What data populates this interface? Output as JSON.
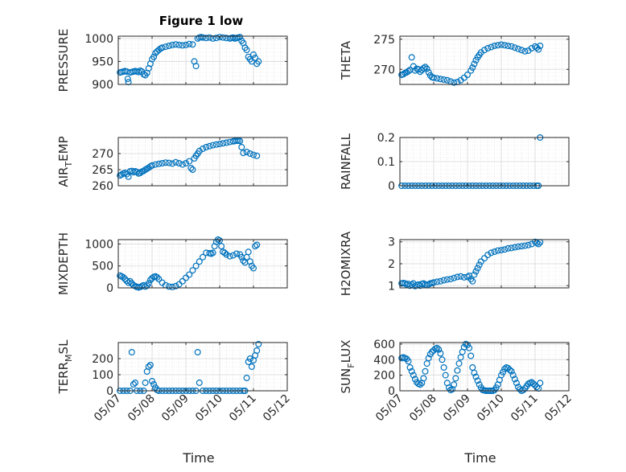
{
  "figure": {
    "title": "Figure 1 low",
    "xlabel": "Time",
    "x_tick_labels": [
      "05/07",
      "05/08",
      "05/09",
      "05/10",
      "05/11",
      "05/12"
    ],
    "marker_color": "#0072BD",
    "grid_color": "#d9d9d9",
    "axes_color": "#262626"
  },
  "chart_data": [
    {
      "type": "scatter",
      "ylabel": "PRESSURE",
      "xlim": [
        7.0,
        12.0
      ],
      "ylim": [
        900,
        1005
      ],
      "yticks": [
        900,
        950,
        1000
      ],
      "ytick_labels": [
        "900",
        "950",
        "1000"
      ],
      "x": [
        7.05,
        7.1,
        7.15,
        7.2,
        7.25,
        7.28,
        7.3,
        7.35,
        7.4,
        7.45,
        7.5,
        7.55,
        7.6,
        7.65,
        7.7,
        7.75,
        7.8,
        7.85,
        7.9,
        7.95,
        8.0,
        8.05,
        8.1,
        8.15,
        8.2,
        8.25,
        8.3,
        8.4,
        8.5,
        8.6,
        8.7,
        8.8,
        8.9,
        9.0,
        9.1,
        9.2,
        9.25,
        9.3,
        9.35,
        9.4,
        9.45,
        9.5,
        9.6,
        9.7,
        9.8,
        9.9,
        10.0,
        10.1,
        10.2,
        10.3,
        10.35,
        10.4,
        10.45,
        10.5,
        10.55,
        10.6,
        10.65,
        10.7,
        10.75,
        10.8,
        10.85,
        10.9,
        10.95,
        11.0,
        11.05,
        11.1,
        11.15
      ],
      "y": [
        926,
        927,
        928,
        929,
        928,
        912,
        905,
        926,
        927,
        928,
        929,
        928,
        927,
        930,
        928,
        922,
        920,
        925,
        935,
        945,
        955,
        960,
        968,
        972,
        975,
        978,
        980,
        982,
        984,
        986,
        987,
        986,
        985,
        986,
        988,
        987,
        950,
        940,
        1000,
        1002,
        1003,
        1002,
        1001,
        1002,
        1000,
        1001,
        1003,
        1002,
        1001,
        1000,
        1001,
        1002,
        1000,
        1001,
        1002,
        1003,
        995,
        990,
        980,
        975,
        960,
        955,
        950,
        965,
        958,
        945,
        950
      ]
    },
    {
      "type": "scatter",
      "ylabel": "THETA",
      "xlim": [
        7.0,
        12.0
      ],
      "ylim": [
        267.5,
        275.5
      ],
      "yticks": [
        270,
        275
      ],
      "ytick_labels": [
        "270",
        "275"
      ],
      "x": [
        7.05,
        7.1,
        7.15,
        7.2,
        7.25,
        7.3,
        7.35,
        7.4,
        7.45,
        7.5,
        7.55,
        7.6,
        7.65,
        7.7,
        7.75,
        7.8,
        7.85,
        7.9,
        7.95,
        8.0,
        8.1,
        8.2,
        8.3,
        8.4,
        8.5,
        8.6,
        8.7,
        8.8,
        8.9,
        9.0,
        9.1,
        9.15,
        9.2,
        9.25,
        9.3,
        9.35,
        9.4,
        9.5,
        9.6,
        9.7,
        9.8,
        9.9,
        10.0,
        10.1,
        10.2,
        10.3,
        10.4,
        10.5,
        10.6,
        10.7,
        10.8,
        10.9,
        11.0,
        11.05,
        11.1,
        11.15
      ],
      "y": [
        269.1,
        269.2,
        269.4,
        269.5,
        269.7,
        269.9,
        272.0,
        270.5,
        269.8,
        270.1,
        270.0,
        269.6,
        269.9,
        270.2,
        270.4,
        270.1,
        269.5,
        269.0,
        268.7,
        268.6,
        268.5,
        268.4,
        268.3,
        268.2,
        268.0,
        267.8,
        267.9,
        268.2,
        268.6,
        269.1,
        269.8,
        270.3,
        270.9,
        271.5,
        272.0,
        272.4,
        272.8,
        273.2,
        273.5,
        273.7,
        273.9,
        274.0,
        274.1,
        274.0,
        273.9,
        273.8,
        273.6,
        273.4,
        273.2,
        273.0,
        273.1,
        273.5,
        273.8,
        273.6,
        273.3,
        273.9
      ]
    },
    {
      "type": "scatter",
      "ylabel": "AIR",
      "ylabel_sub": "T",
      "ylabel_suffix": "EMP",
      "xlim": [
        7.0,
        12.0
      ],
      "ylim": [
        260,
        275
      ],
      "yticks": [
        260,
        265,
        270
      ],
      "ytick_labels": [
        "260",
        "265",
        "270"
      ],
      "x": [
        7.05,
        7.1,
        7.15,
        7.2,
        7.25,
        7.3,
        7.35,
        7.4,
        7.45,
        7.5,
        7.55,
        7.6,
        7.65,
        7.7,
        7.75,
        7.8,
        7.85,
        7.9,
        7.95,
        8.0,
        8.1,
        8.2,
        8.3,
        8.4,
        8.5,
        8.6,
        8.7,
        8.8,
        8.9,
        9.0,
        9.1,
        9.15,
        9.2,
        9.25,
        9.3,
        9.35,
        9.4,
        9.5,
        9.6,
        9.7,
        9.8,
        9.9,
        10.0,
        10.1,
        10.2,
        10.3,
        10.4,
        10.45,
        10.5,
        10.55,
        10.6,
        10.65,
        10.7,
        10.8,
        10.9,
        11.0,
        11.1
      ],
      "y": [
        263.2,
        263.5,
        263.8,
        264.0,
        263.6,
        262.8,
        264.5,
        264.6,
        264.2,
        264.5,
        264.3,
        263.8,
        264.0,
        264.4,
        264.6,
        265.0,
        265.3,
        265.6,
        266.0,
        266.3,
        266.6,
        266.8,
        267.0,
        267.2,
        267.1,
        266.9,
        267.3,
        267.0,
        266.6,
        267.0,
        267.6,
        265.5,
        265.0,
        268.5,
        269.3,
        270.0,
        270.8,
        271.5,
        272.0,
        272.3,
        272.6,
        272.8,
        273.0,
        273.2,
        273.4,
        273.6,
        273.8,
        273.9,
        274.0,
        274.0,
        273.9,
        272.0,
        270.2,
        270.5,
        270.0,
        269.6,
        269.3
      ]
    },
    {
      "type": "scatter",
      "ylabel": "RAINFALL",
      "xlim": [
        7.0,
        12.0
      ],
      "ylim": [
        0,
        0.2
      ],
      "yticks": [
        0,
        0.1,
        0.2
      ],
      "ytick_labels": [
        "0",
        "0.1",
        "0.2"
      ],
      "x": [
        7.05,
        7.15,
        7.25,
        7.35,
        7.45,
        7.55,
        7.65,
        7.75,
        7.85,
        7.95,
        8.05,
        8.15,
        8.25,
        8.35,
        8.45,
        8.55,
        8.65,
        8.75,
        8.85,
        8.95,
        9.05,
        9.15,
        9.25,
        9.35,
        9.45,
        9.55,
        9.65,
        9.75,
        9.85,
        9.95,
        10.05,
        10.15,
        10.25,
        10.35,
        10.45,
        10.55,
        10.65,
        10.75,
        10.85,
        10.95,
        11.05,
        11.1,
        11.15
      ],
      "y": [
        0,
        0,
        0,
        0,
        0,
        0,
        0,
        0,
        0,
        0,
        0,
        0,
        0,
        0,
        0,
        0,
        0,
        0,
        0,
        0,
        0,
        0,
        0,
        0,
        0,
        0,
        0,
        0,
        0,
        0,
        0,
        0,
        0,
        0,
        0,
        0,
        0,
        0,
        0,
        0,
        0,
        0,
        0.2
      ]
    },
    {
      "type": "scatter",
      "ylabel": "MIXDEPTH",
      "xlim": [
        7.0,
        12.0
      ],
      "ylim": [
        0,
        1100
      ],
      "yticks": [
        0,
        500,
        1000
      ],
      "ytick_labels": [
        "0",
        "500",
        "1000"
      ],
      "x": [
        7.05,
        7.1,
        7.15,
        7.2,
        7.25,
        7.3,
        7.35,
        7.4,
        7.45,
        7.5,
        7.55,
        7.6,
        7.65,
        7.7,
        7.75,
        7.8,
        7.85,
        7.9,
        7.95,
        8.0,
        8.05,
        8.1,
        8.15,
        8.2,
        8.3,
        8.4,
        8.5,
        8.6,
        8.7,
        8.8,
        8.9,
        9.0,
        9.1,
        9.2,
        9.3,
        9.4,
        9.5,
        9.6,
        9.7,
        9.75,
        9.8,
        9.85,
        9.9,
        9.95,
        10.0,
        10.05,
        10.1,
        10.15,
        10.2,
        10.3,
        10.4,
        10.5,
        10.6,
        10.65,
        10.7,
        10.75,
        10.8,
        10.85,
        10.9,
        10.95,
        11.0,
        11.05,
        11.1
      ],
      "y": [
        280,
        260,
        240,
        200,
        160,
        120,
        150,
        100,
        60,
        40,
        20,
        10,
        20,
        40,
        60,
        30,
        50,
        100,
        180,
        220,
        250,
        260,
        240,
        200,
        120,
        60,
        30,
        20,
        40,
        80,
        150,
        230,
        300,
        400,
        500,
        600,
        700,
        800,
        790,
        780,
        800,
        950,
        1050,
        1100,
        1080,
        950,
        820,
        800,
        760,
        720,
        740,
        780,
        760,
        700,
        620,
        580,
        700,
        820,
        600,
        500,
        450,
        950,
        980
      ]
    },
    {
      "type": "scatter",
      "ylabel": "H2OMIXRA",
      "xlim": [
        7.0,
        12.0
      ],
      "ylim": [
        0.9,
        3.1
      ],
      "yticks": [
        1,
        2,
        3
      ],
      "ytick_labels": [
        "1",
        "2",
        "3"
      ],
      "x": [
        7.05,
        7.1,
        7.15,
        7.2,
        7.25,
        7.3,
        7.35,
        7.4,
        7.45,
        7.5,
        7.55,
        7.6,
        7.65,
        7.7,
        7.75,
        7.8,
        7.85,
        7.9,
        7.95,
        8.0,
        8.1,
        8.2,
        8.3,
        8.4,
        8.5,
        8.6,
        8.7,
        8.8,
        8.9,
        9.0,
        9.05,
        9.1,
        9.15,
        9.2,
        9.25,
        9.3,
        9.35,
        9.4,
        9.5,
        9.6,
        9.7,
        9.8,
        9.9,
        10.0,
        10.1,
        10.2,
        10.3,
        10.4,
        10.5,
        10.6,
        10.7,
        10.8,
        10.9,
        11.0,
        11.05,
        11.1,
        11.15
      ],
      "y": [
        1.1,
        1.12,
        1.1,
        1.05,
        1.08,
        1.0,
        1.05,
        1.1,
        0.98,
        1.02,
        1.05,
        1.0,
        1.08,
        1.1,
        1.05,
        1.02,
        1.06,
        1.1,
        1.12,
        1.15,
        1.18,
        1.2,
        1.25,
        1.28,
        1.3,
        1.35,
        1.4,
        1.42,
        1.38,
        1.4,
        1.45,
        1.3,
        1.2,
        1.5,
        1.65,
        1.8,
        1.95,
        2.1,
        2.25,
        2.4,
        2.5,
        2.55,
        2.6,
        2.62,
        2.65,
        2.7,
        2.72,
        2.75,
        2.78,
        2.8,
        2.82,
        2.85,
        2.9,
        3.0,
        2.95,
        2.9,
        2.98
      ]
    },
    {
      "type": "scatter",
      "ylabel": "TERR",
      "ylabel_sub": "M",
      "ylabel_suffix": "SL",
      "xlim": [
        7.0,
        12.0
      ],
      "ylim": [
        0,
        300
      ],
      "yticks": [
        0,
        100,
        200
      ],
      "ytick_labels": [
        "0",
        "100",
        "200"
      ],
      "x": [
        7.05,
        7.15,
        7.25,
        7.35,
        7.4,
        7.45,
        7.5,
        7.55,
        7.65,
        7.75,
        7.8,
        7.85,
        7.9,
        7.95,
        8.0,
        8.05,
        8.1,
        8.15,
        8.2,
        8.3,
        8.4,
        8.5,
        8.6,
        8.7,
        8.8,
        8.9,
        9.0,
        9.1,
        9.2,
        9.3,
        9.35,
        9.4,
        9.5,
        9.6,
        9.7,
        9.8,
        9.9,
        10.0,
        10.1,
        10.2,
        10.3,
        10.4,
        10.5,
        10.6,
        10.7,
        10.75,
        10.8,
        10.85,
        10.9,
        10.95,
        11.0,
        11.05,
        11.1,
        11.15
      ],
      "y": [
        0,
        0,
        0,
        0,
        240,
        40,
        50,
        0,
        0,
        0,
        50,
        120,
        150,
        160,
        60,
        40,
        20,
        5,
        0,
        0,
        0,
        0,
        0,
        0,
        0,
        0,
        0,
        0,
        0,
        0,
        240,
        50,
        0,
        0,
        0,
        0,
        0,
        0,
        0,
        0,
        0,
        0,
        0,
        0,
        0,
        0,
        80,
        180,
        200,
        150,
        190,
        220,
        250,
        290
      ]
    },
    {
      "type": "scatter",
      "ylabel": "SUN",
      "ylabel_sub": "F",
      "ylabel_suffix": "LUX",
      "xlim": [
        7.0,
        12.0
      ],
      "ylim": [
        0,
        620
      ],
      "yticks": [
        0,
        200,
        400,
        600
      ],
      "ytick_labels": [
        "0",
        "200",
        "400",
        "600"
      ],
      "x": [
        7.05,
        7.1,
        7.15,
        7.2,
        7.25,
        7.3,
        7.35,
        7.4,
        7.45,
        7.5,
        7.55,
        7.6,
        7.65,
        7.7,
        7.75,
        7.8,
        7.85,
        7.9,
        7.95,
        8.0,
        8.05,
        8.1,
        8.15,
        8.2,
        8.25,
        8.3,
        8.35,
        8.4,
        8.45,
        8.5,
        8.55,
        8.6,
        8.65,
        8.7,
        8.75,
        8.8,
        8.85,
        8.9,
        8.95,
        9.0,
        9.05,
        9.1,
        9.15,
        9.2,
        9.25,
        9.3,
        9.35,
        9.4,
        9.45,
        9.5,
        9.55,
        9.6,
        9.65,
        9.7,
        9.75,
        9.8,
        9.85,
        9.9,
        9.95,
        10.0,
        10.05,
        10.1,
        10.15,
        10.2,
        10.25,
        10.3,
        10.35,
        10.4,
        10.45,
        10.5,
        10.55,
        10.6,
        10.65,
        10.7,
        10.75,
        10.8,
        10.85,
        10.9,
        10.95,
        11.0,
        11.05,
        11.1,
        11.15
      ],
      "y": [
        420,
        430,
        420,
        410,
        380,
        300,
        250,
        200,
        150,
        110,
        90,
        80,
        100,
        160,
        250,
        350,
        420,
        470,
        500,
        520,
        540,
        550,
        530,
        480,
        400,
        300,
        200,
        100,
        40,
        10,
        20,
        80,
        160,
        260,
        350,
        430,
        500,
        560,
        600,
        590,
        550,
        450,
        300,
        230,
        180,
        130,
        80,
        40,
        10,
        5,
        0,
        0,
        0,
        0,
        0,
        10,
        40,
        80,
        140,
        200,
        240,
        280,
        300,
        290,
        270,
        250,
        200,
        150,
        100,
        50,
        20,
        0,
        10,
        30,
        60,
        90,
        100,
        110,
        90,
        70,
        50,
        30,
        100
      ]
    }
  ]
}
